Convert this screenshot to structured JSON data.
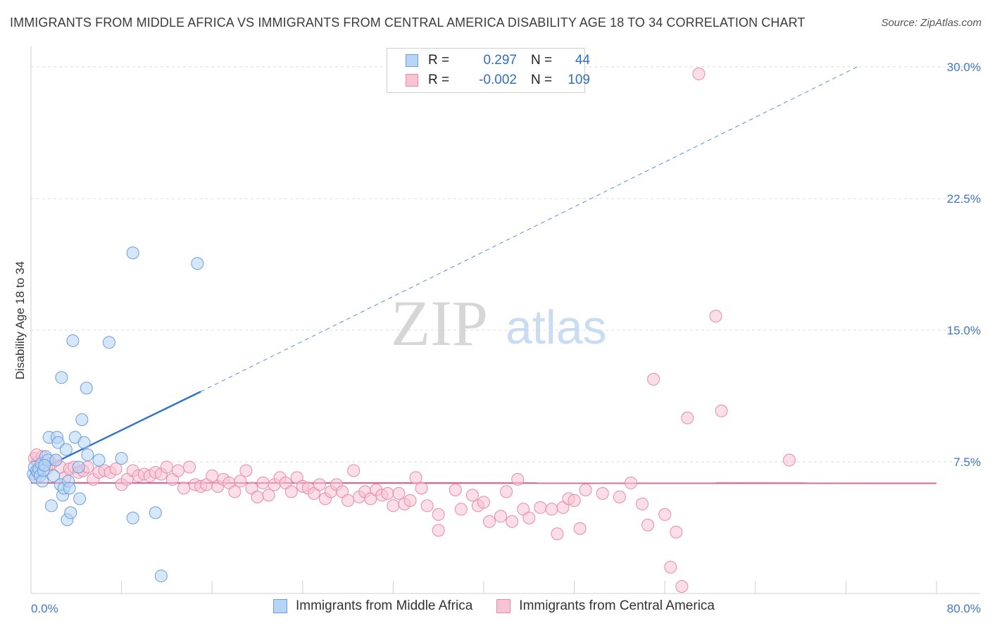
{
  "header": {
    "title": "IMMIGRANTS FROM MIDDLE AFRICA VS IMMIGRANTS FROM CENTRAL AMERICA DISABILITY AGE 18 TO 34 CORRELATION CHART",
    "source": "Source: ZipAtlas.com"
  },
  "watermark": {
    "zip": "ZIP",
    "atlas": "atlas"
  },
  "legend": {
    "rows": [
      {
        "r_label": "R =",
        "r_value": "0.297",
        "n_label": "N =",
        "n_value": "44"
      },
      {
        "r_label": "R =",
        "r_value": "-0.002",
        "n_label": "N =",
        "n_value": "109"
      }
    ]
  },
  "colors": {
    "blue_fill": "#b7d3f5",
    "blue_stroke": "#6a9fdc",
    "blue_line": "#2f72d2",
    "pink_fill": "#f8c3d3",
    "pink_stroke": "#e88aa8",
    "pink_line": "#e0628f",
    "tick_text": "#3d78c4",
    "grid": "#dcdcdc"
  },
  "chart_data": {
    "type": "scatter",
    "title": "IMMIGRANTS FROM MIDDLE AFRICA VS IMMIGRANTS FROM CENTRAL AMERICA DISABILITY AGE 18 TO 34 CORRELATION CHART",
    "xlabel": "",
    "ylabel": "Disability Age 18 to 34",
    "xlim": [
      0,
      80
    ],
    "ylim": [
      0,
      31
    ],
    "x_ticks": [
      "0.0%",
      "80.0%"
    ],
    "y_ticks": [
      {
        "value": 7.5,
        "label": "7.5%"
      },
      {
        "value": 15.0,
        "label": "15.0%"
      },
      {
        "value": 22.5,
        "label": "22.5%"
      },
      {
        "value": 30.0,
        "label": "30.0%"
      }
    ],
    "grid": true,
    "legend_position": "top-center",
    "series": [
      {
        "name": "Immigrants from Middle Africa",
        "color": "blue",
        "trend": {
          "x0": 0,
          "y0": 6.8,
          "x1": 15,
          "y1": 11.5,
          "dashed_to_x": 73,
          "dashed_to_y": 30.0
        },
        "points": [
          [
            0.2,
            6.8
          ],
          [
            0.3,
            7.2
          ],
          [
            0.4,
            6.6
          ],
          [
            0.5,
            7.0
          ],
          [
            0.6,
            6.9
          ],
          [
            0.7,
            7.1
          ],
          [
            0.8,
            6.7
          ],
          [
            0.9,
            7.4
          ],
          [
            1.0,
            6.4
          ],
          [
            1.1,
            7.0
          ],
          [
            1.3,
            7.8
          ],
          [
            1.5,
            7.6
          ],
          [
            1.6,
            8.9
          ],
          [
            1.8,
            5.0
          ],
          [
            2.0,
            6.7
          ],
          [
            2.2,
            7.6
          ],
          [
            2.3,
            8.9
          ],
          [
            2.4,
            8.6
          ],
          [
            2.6,
            6.2
          ],
          [
            2.7,
            12.3
          ],
          [
            2.8,
            5.6
          ],
          [
            2.9,
            6.0
          ],
          [
            3.1,
            8.2
          ],
          [
            3.2,
            4.2
          ],
          [
            3.3,
            6.4
          ],
          [
            3.4,
            6.0
          ],
          [
            3.5,
            4.6
          ],
          [
            3.7,
            14.4
          ],
          [
            3.9,
            8.9
          ],
          [
            4.2,
            7.2
          ],
          [
            4.3,
            5.4
          ],
          [
            4.5,
            9.9
          ],
          [
            4.7,
            8.6
          ],
          [
            4.9,
            11.7
          ],
          [
            5.0,
            7.9
          ],
          [
            6.0,
            7.6
          ],
          [
            6.9,
            14.3
          ],
          [
            8.0,
            7.7
          ],
          [
            9.0,
            19.4
          ],
          [
            9.0,
            4.3
          ],
          [
            11.0,
            4.6
          ],
          [
            11.5,
            1.0
          ],
          [
            14.7,
            18.8
          ],
          [
            1.2,
            7.3
          ]
        ]
      },
      {
        "name": "Immigrants from Central America",
        "color": "pink",
        "trend": {
          "x0": 0,
          "y0": 6.3,
          "x1": 80,
          "y1": 6.28
        },
        "points": [
          [
            0.3,
            7.7
          ],
          [
            0.6,
            7.5
          ],
          [
            1.0,
            7.8
          ],
          [
            1.4,
            7.1
          ],
          [
            1.8,
            7.4
          ],
          [
            2.2,
            7.6
          ],
          [
            2.6,
            7.2
          ],
          [
            3.0,
            6.6
          ],
          [
            3.4,
            7.1
          ],
          [
            3.8,
            7.2
          ],
          [
            4.2,
            6.9
          ],
          [
            4.6,
            7.0
          ],
          [
            5.0,
            7.2
          ],
          [
            5.5,
            6.5
          ],
          [
            6.0,
            6.9
          ],
          [
            6.5,
            7.0
          ],
          [
            7.0,
            6.9
          ],
          [
            7.5,
            7.1
          ],
          [
            8.0,
            6.2
          ],
          [
            8.5,
            6.5
          ],
          [
            9.0,
            7.0
          ],
          [
            9.5,
            6.7
          ],
          [
            10.0,
            6.8
          ],
          [
            10.5,
            6.7
          ],
          [
            11.0,
            6.9
          ],
          [
            11.5,
            6.8
          ],
          [
            12.0,
            7.2
          ],
          [
            12.5,
            6.5
          ],
          [
            13.0,
            7.0
          ],
          [
            13.5,
            6.0
          ],
          [
            14.0,
            7.2
          ],
          [
            14.5,
            6.2
          ],
          [
            15.0,
            6.1
          ],
          [
            15.5,
            6.2
          ],
          [
            16.0,
            6.7
          ],
          [
            16.5,
            6.1
          ],
          [
            17.0,
            6.5
          ],
          [
            17.5,
            6.3
          ],
          [
            18.0,
            5.8
          ],
          [
            18.5,
            6.4
          ],
          [
            19.0,
            7.0
          ],
          [
            19.5,
            6.0
          ],
          [
            20.0,
            5.5
          ],
          [
            20.5,
            6.3
          ],
          [
            21.0,
            5.6
          ],
          [
            21.5,
            6.2
          ],
          [
            22.0,
            6.6
          ],
          [
            22.5,
            6.3
          ],
          [
            23.0,
            5.8
          ],
          [
            23.5,
            6.6
          ],
          [
            24.0,
            6.1
          ],
          [
            24.5,
            6.0
          ],
          [
            25.0,
            5.7
          ],
          [
            25.5,
            6.2
          ],
          [
            26.0,
            5.4
          ],
          [
            26.5,
            5.8
          ],
          [
            27.0,
            6.2
          ],
          [
            27.5,
            5.8
          ],
          [
            28.0,
            5.3
          ],
          [
            28.5,
            7.0
          ],
          [
            29.0,
            5.5
          ],
          [
            29.5,
            5.8
          ],
          [
            30.0,
            5.4
          ],
          [
            30.5,
            5.9
          ],
          [
            31.0,
            5.6
          ],
          [
            31.5,
            5.7
          ],
          [
            32.0,
            5.0
          ],
          [
            32.5,
            5.7
          ],
          [
            33.0,
            5.1
          ],
          [
            33.5,
            5.3
          ],
          [
            34.0,
            6.6
          ],
          [
            34.5,
            6.0
          ],
          [
            35.0,
            5.0
          ],
          [
            36.0,
            4.5
          ],
          [
            36.0,
            3.6
          ],
          [
            37.5,
            5.9
          ],
          [
            38.0,
            4.8
          ],
          [
            39.0,
            5.6
          ],
          [
            39.5,
            5.0
          ],
          [
            40.0,
            5.2
          ],
          [
            40.5,
            4.1
          ],
          [
            41.5,
            4.4
          ],
          [
            42.0,
            5.8
          ],
          [
            42.5,
            4.1
          ],
          [
            43.0,
            6.5
          ],
          [
            43.5,
            4.8
          ],
          [
            44.0,
            4.3
          ],
          [
            45.0,
            4.9
          ],
          [
            46.0,
            4.8
          ],
          [
            46.5,
            3.4
          ],
          [
            47.0,
            4.9
          ],
          [
            47.5,
            5.4
          ],
          [
            48.0,
            5.3
          ],
          [
            48.5,
            3.7
          ],
          [
            49.0,
            5.9
          ],
          [
            50.5,
            5.7
          ],
          [
            52.0,
            5.5
          ],
          [
            53.0,
            6.3
          ],
          [
            54.0,
            5.1
          ],
          [
            54.5,
            3.9
          ],
          [
            55.0,
            12.2
          ],
          [
            56.0,
            4.5
          ],
          [
            56.5,
            1.5
          ],
          [
            57.0,
            3.5
          ],
          [
            57.5,
            0.4
          ],
          [
            58.0,
            10.0
          ],
          [
            59.0,
            29.6
          ],
          [
            60.5,
            15.8
          ],
          [
            61.0,
            10.4
          ],
          [
            67.0,
            7.6
          ],
          [
            0.5,
            7.9
          ]
        ]
      }
    ]
  },
  "bottom_legend": {
    "items": [
      {
        "label": "Immigrants from Middle Africa"
      },
      {
        "label": "Immigrants from Central America"
      }
    ]
  }
}
